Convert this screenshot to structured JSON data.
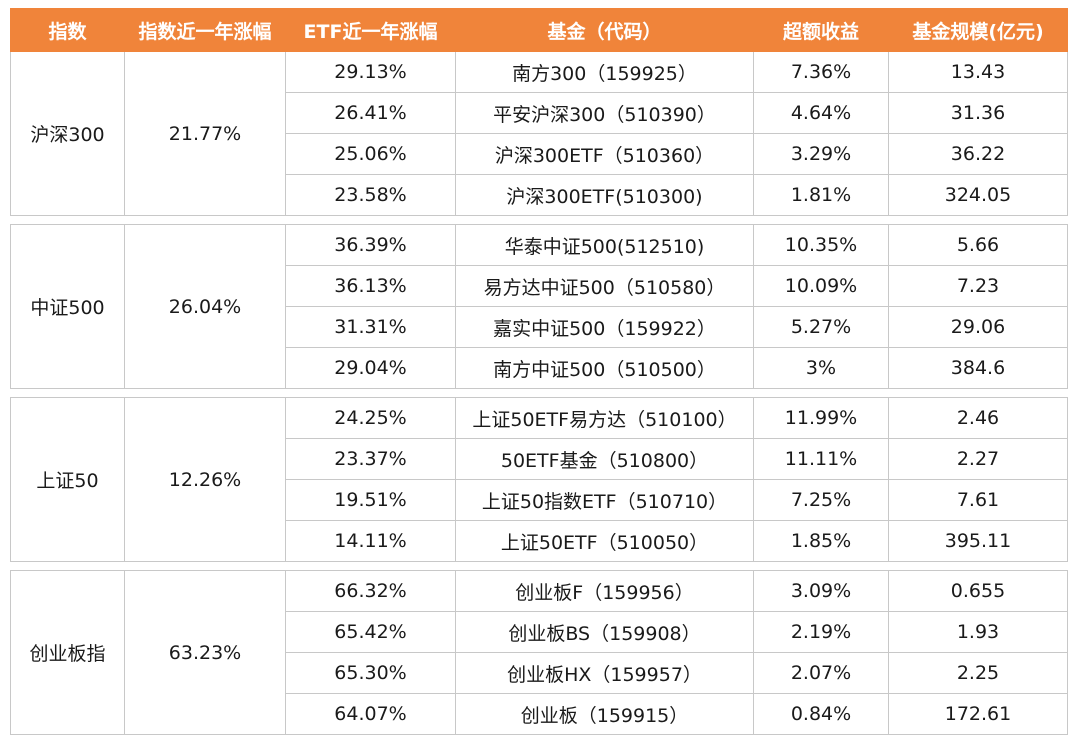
{
  "headers": [
    "指数",
    "指数近一年涨幅",
    "ETF近一年涨幅",
    "基金（代码）",
    "超额收益",
    "基金规模(亿元)"
  ],
  "groups": [
    {
      "index": "沪深300",
      "index_change": "21.77%",
      "rows": [
        {
          "etf_change": "29.13%",
          "fund": "南方300（159925）",
          "excess": "7.36%",
          "scale": "13.43"
        },
        {
          "etf_change": "26.41%",
          "fund": "平安沪深300（510390）",
          "excess": "4.64%",
          "scale": "31.36"
        },
        {
          "etf_change": "25.06%",
          "fund": "沪深300ETF（510360）",
          "excess": "3.29%",
          "scale": "36.22"
        },
        {
          "etf_change": "23.58%",
          "fund": "沪深300ETF(510300)",
          "excess": "1.81%",
          "scale": "324.05"
        }
      ]
    },
    {
      "index": "中证500",
      "index_change": "26.04%",
      "rows": [
        {
          "etf_change": "36.39%",
          "fund": "华泰中证500(512510)",
          "excess": "10.35%",
          "scale": "5.66"
        },
        {
          "etf_change": "36.13%",
          "fund": "易方达中证500（510580）",
          "excess": "10.09%",
          "scale": "7.23"
        },
        {
          "etf_change": "31.31%",
          "fund": "嘉实中证500（159922）",
          "excess": "5.27%",
          "scale": "29.06"
        },
        {
          "etf_change": "29.04%",
          "fund": "南方中证500（510500）",
          "excess": "3%",
          "scale": "384.6"
        }
      ]
    },
    {
      "index": "上证50",
      "index_change": "12.26%",
      "rows": [
        {
          "etf_change": "24.25%",
          "fund": "上证50ETF易方达（510100）",
          "excess": "11.99%",
          "scale": "2.46"
        },
        {
          "etf_change": "23.37%",
          "fund": "50ETF基金（510800）",
          "excess": "11.11%",
          "scale": "2.27"
        },
        {
          "etf_change": "19.51%",
          "fund": "上证50指数ETF（510710）",
          "excess": "7.25%",
          "scale": "7.61"
        },
        {
          "etf_change": "14.11%",
          "fund": "上证50ETF（510050）",
          "excess": "1.85%",
          "scale": "395.11"
        }
      ]
    },
    {
      "index": "创业板指",
      "index_change": "63.23%",
      "rows": [
        {
          "etf_change": "66.32%",
          "fund": "创业板F（159956）",
          "excess": "3.09%",
          "scale": "0.655"
        },
        {
          "etf_change": "65.42%",
          "fund": "创业板BS（159908）",
          "excess": "2.19%",
          "scale": "1.93"
        },
        {
          "etf_change": "65.30%",
          "fund": "创业板HX（159957）",
          "excess": "2.07%",
          "scale": "2.25"
        },
        {
          "etf_change": "64.07%",
          "fund": "创业板（159915）",
          "excess": "0.84%",
          "scale": "172.61"
        }
      ]
    }
  ]
}
